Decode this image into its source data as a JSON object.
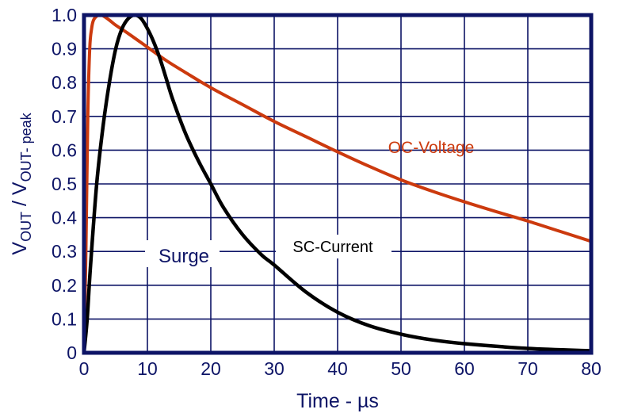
{
  "chart_data": {
    "type": "line",
    "title": "",
    "xlabel": "Time - µs",
    "ylabel_main": "V",
    "ylabel_sub1": "OUT",
    "ylabel_mid": " / V",
    "ylabel_sub2": "OUT- peak",
    "xlim": [
      0,
      80
    ],
    "ylim": [
      0,
      1.0
    ],
    "grid": true,
    "xticks": [
      "0",
      "10",
      "20",
      "30",
      "40",
      "50",
      "60",
      "70",
      "80"
    ],
    "yticks": [
      "0",
      "0.1",
      "0.2",
      "0.3",
      "0.4",
      "0.5",
      "0.6",
      "0.7",
      "0.8",
      "0.9",
      "1.0"
    ],
    "annotations": {
      "surge": "Surge",
      "sc_label": "SC-Current",
      "oc_label": "OC-Voltage"
    },
    "colors": {
      "axis": "#0d1466",
      "oc": "#cc3a0e",
      "sc": "#000000"
    },
    "series": [
      {
        "name": "OC-Voltage",
        "x": [
          0,
          0.3,
          0.6,
          0.9,
          1.2,
          1.5,
          2,
          2.5,
          3,
          4,
          5,
          7,
          10,
          13,
          16,
          20,
          25,
          30,
          35,
          40,
          45,
          50,
          55,
          60,
          65,
          70,
          75,
          80
        ],
        "y": [
          0,
          0.3,
          0.7,
          0.9,
          0.96,
          0.985,
          0.997,
          1.0,
          0.998,
          0.985,
          0.97,
          0.945,
          0.905,
          0.865,
          0.83,
          0.785,
          0.735,
          0.685,
          0.64,
          0.595,
          0.552,
          0.512,
          0.478,
          0.447,
          0.418,
          0.39,
          0.36,
          0.33
        ]
      },
      {
        "name": "SC-Current",
        "x": [
          0,
          0.5,
          1,
          2,
          3,
          4,
          5,
          6,
          7,
          8,
          9,
          10,
          11,
          12,
          13,
          14,
          16,
          18,
          20,
          22,
          25,
          28,
          30,
          35,
          40,
          45,
          50,
          55,
          60,
          70,
          80
        ],
        "y": [
          0,
          0.1,
          0.25,
          0.5,
          0.67,
          0.8,
          0.9,
          0.96,
          0.99,
          1.0,
          0.99,
          0.96,
          0.92,
          0.87,
          0.81,
          0.75,
          0.65,
          0.57,
          0.5,
          0.43,
          0.35,
          0.29,
          0.26,
          0.18,
          0.12,
          0.08,
          0.055,
          0.038,
          0.027,
          0.013,
          0.006
        ]
      }
    ]
  }
}
